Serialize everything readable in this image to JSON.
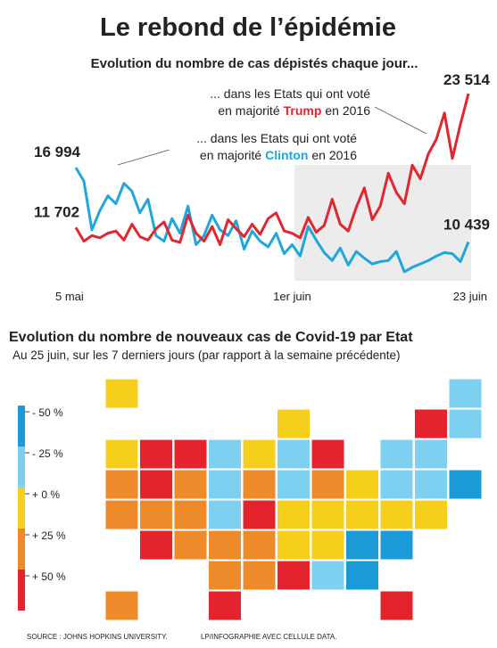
{
  "chart_data": {
    "type": "line",
    "title": "Le rebond de l’épidémie",
    "subtitle": "Evolution du nombre de cas dépistés chaque jour...",
    "annotations": {
      "trump": [
        "... dans les Etats qui ont voté",
        "en majorité",
        "Trump",
        "en 2016"
      ],
      "clinton": [
        "... dans les Etats qui ont voté",
        "en majorité",
        "Clinton",
        "en 2016"
      ]
    },
    "categories": [
      "5 mai",
      null,
      null,
      null,
      null,
      null,
      null,
      null,
      null,
      null,
      null,
      null,
      null,
      null,
      null,
      null,
      null,
      null,
      null,
      null,
      null,
      null,
      null,
      null,
      null,
      null,
      null,
      "1er juin",
      null,
      null,
      null,
      null,
      null,
      null,
      null,
      null,
      null,
      null,
      null,
      null,
      null,
      null,
      null,
      null,
      null,
      null,
      null,
      null,
      null,
      "23 juin"
    ],
    "series": [
      {
        "name": "Clinton",
        "color": "#1fa7dc",
        "values": [
          16994,
          15800,
          11500,
          13200,
          14500,
          13800,
          15600,
          14900,
          13000,
          14200,
          11000,
          10500,
          12500,
          11200,
          13600,
          10200,
          11000,
          12800,
          11500,
          11000,
          12300,
          9800,
          11400,
          10500,
          10000,
          11200,
          9400,
          10200,
          9200,
          11800,
          10600,
          9500,
          8800,
          9900,
          8400,
          9600,
          9000,
          8500,
          8700,
          8800,
          9600,
          7800,
          8200,
          8500,
          8800,
          9200,
          9500,
          9400,
          8700,
          10439
        ],
        "value_labels": [
          "16 994",
          null,
          null,
          null,
          null,
          null,
          null,
          null,
          null,
          null,
          null,
          null,
          null,
          null,
          null,
          null,
          null,
          null,
          null,
          null,
          null,
          null,
          null,
          null,
          null,
          null,
          null,
          null,
          null,
          null,
          null,
          null,
          null,
          null,
          null,
          null,
          null,
          null,
          null,
          null,
          null,
          null,
          null,
          null,
          null,
          null,
          null,
          null,
          null,
          "10 439"
        ]
      },
      {
        "name": "Trump",
        "color": "#e0262e",
        "values": [
          11702,
          10500,
          11000,
          10800,
          11200,
          11400,
          10600,
          12000,
          10900,
          10600,
          11600,
          12200,
          10600,
          10400,
          12800,
          11200,
          10500,
          11800,
          10200,
          12400,
          11600,
          10900,
          12000,
          11100,
          12500,
          13000,
          11400,
          11200,
          10800,
          12600,
          11300,
          11900,
          14200,
          12000,
          11400,
          13500,
          15200,
          12400,
          13600,
          16500,
          14800,
          13800,
          17200,
          16000,
          18200,
          19500,
          21800,
          17800,
          20800,
          23514
        ],
        "value_labels": [
          "11 702",
          null,
          null,
          null,
          null,
          null,
          null,
          null,
          null,
          null,
          null,
          null,
          null,
          null,
          null,
          null,
          null,
          null,
          null,
          null,
          null,
          null,
          null,
          null,
          null,
          null,
          null,
          null,
          null,
          null,
          null,
          null,
          null,
          null,
          null,
          null,
          null,
          null,
          null,
          null,
          null,
          null,
          null,
          null,
          null,
          null,
          null,
          null,
          null,
          "23 514"
        ]
      }
    ]
  },
  "map": {
    "title": "Evolution du nombre de nouveaux cas de Covid-19 par Etat",
    "subtitle": "Au 25 juin, sur les 7 derniers jours (par rapport à la semaine précédente)",
    "legend": [
      {
        "label": "- 50 %",
        "color": "#1a9ad6"
      },
      {
        "label": "- 25 %",
        "color": "#7dd0f0"
      },
      {
        "label": "+ 0 %",
        "color": "#f6cf1c"
      },
      {
        "label": "+ 25 %",
        "color": "#ef8a2b"
      },
      {
        "label": "+ 50 %",
        "color": "#e3242c"
      }
    ],
    "states": [
      2,
      1,
      2,
      4,
      1,
      2,
      4,
      4,
      1,
      2,
      1,
      4,
      1,
      1,
      3,
      4,
      3,
      1,
      3,
      1,
      3,
      2,
      1,
      1,
      0,
      3,
      3,
      3,
      1,
      4,
      2,
      2,
      2,
      2,
      2,
      4,
      3,
      3,
      3,
      2,
      2,
      0,
      0,
      3,
      3,
      4,
      1,
      0,
      3,
      4,
      4
    ]
  },
  "footer": {
    "source": "SOURCE : JOHNS HOPKINS UNIVERSITY.",
    "credit": "LP/INFOGRAPHIE AVEC CELLULE DATA."
  }
}
